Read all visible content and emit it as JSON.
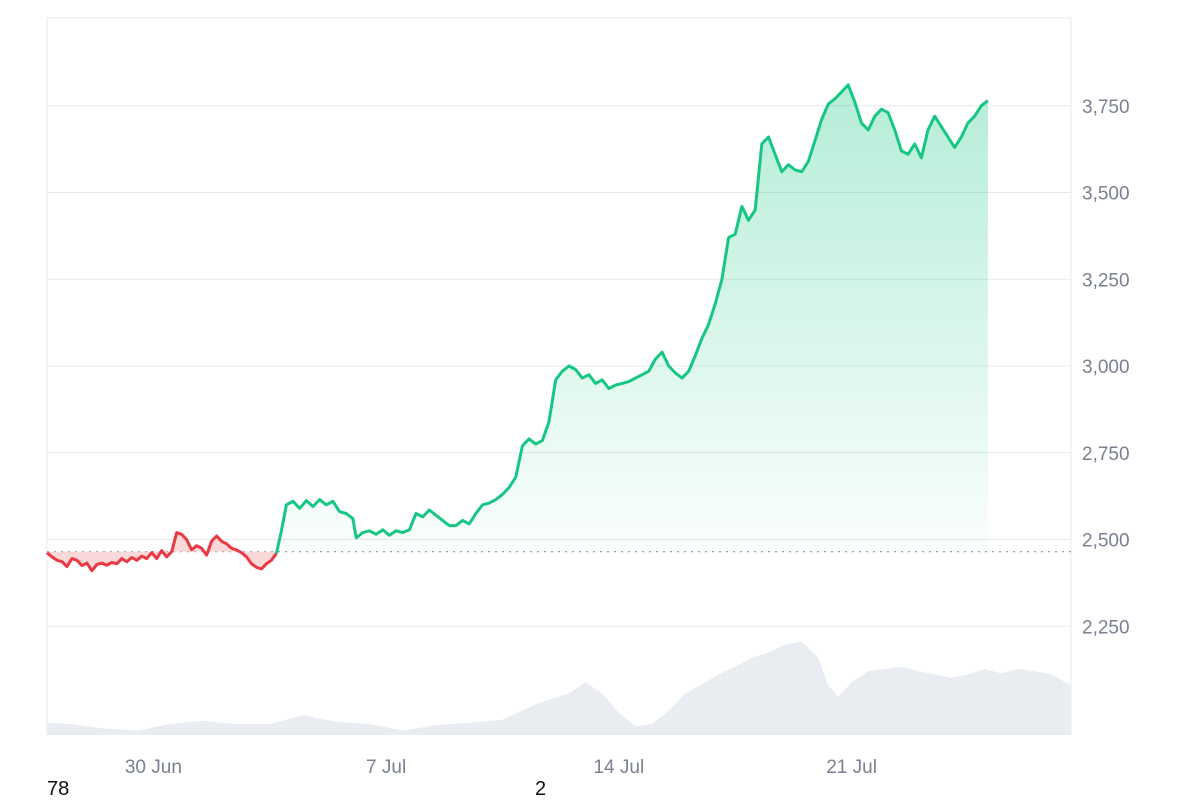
{
  "chart_data": {
    "type": "area",
    "title": "",
    "xlabel": "",
    "ylabel": "",
    "x_ticks": [
      {
        "day": 30,
        "label": "30 Jun"
      },
      {
        "day": 37,
        "label": "7 Jul"
      },
      {
        "day": 44,
        "label": "14 Jul"
      },
      {
        "day": 51,
        "label": "21 Jul"
      }
    ],
    "y_ticks": [
      {
        "value": 2250,
        "label": "2,250"
      },
      {
        "value": 2500,
        "label": "2,500"
      },
      {
        "value": 2750,
        "label": "2,750"
      },
      {
        "value": 3000,
        "label": "3,000"
      },
      {
        "value": 3250,
        "label": "3,250"
      },
      {
        "value": 3500,
        "label": "3,500"
      },
      {
        "value": 3750,
        "label": "3,750"
      }
    ],
    "ylim": [
      2000,
      4000
    ],
    "x_day_range": [
      26.8,
      57.6
    ],
    "baseline": 2465,
    "grid": true,
    "colors": {
      "up": "#16c784",
      "down": "#ea3943",
      "grid": "#e8e9ed",
      "volume": "#e9edf1",
      "axis_text": "#7a8090"
    },
    "series": [
      {
        "points": [
          [
            26.8,
            2462
          ],
          [
            26.95,
            2450
          ],
          [
            27.1,
            2440
          ],
          [
            27.25,
            2436
          ],
          [
            27.4,
            2422
          ],
          [
            27.55,
            2445
          ],
          [
            27.7,
            2440
          ],
          [
            27.85,
            2425
          ],
          [
            28.0,
            2432
          ],
          [
            28.15,
            2410
          ],
          [
            28.3,
            2428
          ],
          [
            28.45,
            2432
          ],
          [
            28.6,
            2426
          ],
          [
            28.75,
            2434
          ],
          [
            28.9,
            2430
          ],
          [
            29.05,
            2445
          ],
          [
            29.2,
            2436
          ],
          [
            29.35,
            2448
          ],
          [
            29.5,
            2440
          ],
          [
            29.65,
            2452
          ],
          [
            29.8,
            2445
          ],
          [
            29.95,
            2462
          ],
          [
            30.1,
            2445
          ],
          [
            30.25,
            2468
          ],
          [
            30.4,
            2450
          ],
          [
            30.55,
            2465
          ],
          [
            30.7,
            2520
          ],
          [
            30.85,
            2515
          ],
          [
            31.0,
            2500
          ],
          [
            31.15,
            2470
          ],
          [
            31.3,
            2482
          ],
          [
            31.45,
            2475
          ],
          [
            31.6,
            2455
          ],
          [
            31.75,
            2495
          ],
          [
            31.9,
            2510
          ],
          [
            32.05,
            2495
          ],
          [
            32.2,
            2488
          ],
          [
            32.35,
            2475
          ],
          [
            32.5,
            2470
          ],
          [
            32.65,
            2462
          ],
          [
            32.8,
            2450
          ],
          [
            32.95,
            2430
          ],
          [
            33.1,
            2420
          ],
          [
            33.25,
            2415
          ],
          [
            33.4,
            2430
          ],
          [
            33.55,
            2440
          ],
          [
            33.7,
            2460
          ],
          [
            33.85,
            2525
          ],
          [
            34.0,
            2600
          ],
          [
            34.2,
            2610
          ],
          [
            34.4,
            2590
          ],
          [
            34.6,
            2612
          ],
          [
            34.8,
            2595
          ],
          [
            35.0,
            2615
          ],
          [
            35.2,
            2600
          ],
          [
            35.4,
            2610
          ],
          [
            35.6,
            2580
          ],
          [
            35.8,
            2575
          ],
          [
            36.0,
            2560
          ],
          [
            36.1,
            2505
          ],
          [
            36.3,
            2520
          ],
          [
            36.5,
            2525
          ],
          [
            36.7,
            2515
          ],
          [
            36.9,
            2528
          ],
          [
            37.1,
            2512
          ],
          [
            37.3,
            2525
          ],
          [
            37.5,
            2520
          ],
          [
            37.7,
            2528
          ],
          [
            37.9,
            2575
          ],
          [
            38.1,
            2565
          ],
          [
            38.3,
            2585
          ],
          [
            38.5,
            2570
          ],
          [
            38.7,
            2555
          ],
          [
            38.9,
            2540
          ],
          [
            39.1,
            2540
          ],
          [
            39.3,
            2555
          ],
          [
            39.5,
            2545
          ],
          [
            39.7,
            2575
          ],
          [
            39.9,
            2600
          ],
          [
            40.1,
            2605
          ],
          [
            40.3,
            2615
          ],
          [
            40.5,
            2630
          ],
          [
            40.7,
            2650
          ],
          [
            40.9,
            2680
          ],
          [
            41.1,
            2770
          ],
          [
            41.3,
            2790
          ],
          [
            41.5,
            2775
          ],
          [
            41.7,
            2785
          ],
          [
            41.9,
            2840
          ],
          [
            42.1,
            2960
          ],
          [
            42.3,
            2985
          ],
          [
            42.5,
            3000
          ],
          [
            42.7,
            2990
          ],
          [
            42.9,
            2965
          ],
          [
            43.1,
            2975
          ],
          [
            43.3,
            2950
          ],
          [
            43.5,
            2960
          ],
          [
            43.7,
            2935
          ],
          [
            43.9,
            2945
          ],
          [
            44.1,
            2950
          ],
          [
            44.3,
            2955
          ],
          [
            44.5,
            2965
          ],
          [
            44.7,
            2975
          ],
          [
            44.9,
            2985
          ],
          [
            45.1,
            3020
          ],
          [
            45.3,
            3040
          ],
          [
            45.5,
            3000
          ],
          [
            45.7,
            2980
          ],
          [
            45.9,
            2965
          ],
          [
            46.1,
            2985
          ],
          [
            46.3,
            3030
          ],
          [
            46.5,
            3080
          ],
          [
            46.7,
            3120
          ],
          [
            46.9,
            3180
          ],
          [
            47.1,
            3250
          ],
          [
            47.3,
            3370
          ],
          [
            47.5,
            3380
          ],
          [
            47.7,
            3460
          ],
          [
            47.9,
            3420
          ],
          [
            48.1,
            3450
          ],
          [
            48.3,
            3640
          ],
          [
            48.5,
            3660
          ],
          [
            48.7,
            3610
          ],
          [
            48.9,
            3560
          ],
          [
            49.1,
            3580
          ],
          [
            49.3,
            3565
          ],
          [
            49.5,
            3560
          ],
          [
            49.7,
            3590
          ],
          [
            49.9,
            3650
          ],
          [
            50.1,
            3710
          ],
          [
            50.3,
            3755
          ],
          [
            50.5,
            3770
          ],
          [
            50.7,
            3790
          ],
          [
            50.9,
            3810
          ],
          [
            51.1,
            3760
          ],
          [
            51.3,
            3700
          ],
          [
            51.5,
            3680
          ],
          [
            51.7,
            3720
          ],
          [
            51.9,
            3740
          ],
          [
            52.1,
            3730
          ],
          [
            52.3,
            3680
          ],
          [
            52.5,
            3620
          ],
          [
            52.7,
            3610
          ],
          [
            52.9,
            3640
          ],
          [
            53.1,
            3600
          ],
          [
            53.3,
            3680
          ],
          [
            53.5,
            3720
          ],
          [
            53.7,
            3690
          ],
          [
            53.9,
            3660
          ],
          [
            54.1,
            3630
          ],
          [
            54.3,
            3660
          ],
          [
            54.5,
            3700
          ],
          [
            54.7,
            3720
          ],
          [
            54.9,
            3750
          ],
          [
            55.1,
            3765
          ]
        ]
      }
    ],
    "volume": {
      "points": [
        [
          26.8,
          0.11
        ],
        [
          27.5,
          0.1
        ],
        [
          28.5,
          0.06
        ],
        [
          29.5,
          0.04
        ],
        [
          30.5,
          0.1
        ],
        [
          31.5,
          0.13
        ],
        [
          32.5,
          0.1
        ],
        [
          33.5,
          0.1
        ],
        [
          34.5,
          0.18
        ],
        [
          35.5,
          0.12
        ],
        [
          36.5,
          0.1
        ],
        [
          37.5,
          0.04
        ],
        [
          38.5,
          0.09
        ],
        [
          39.5,
          0.11
        ],
        [
          40.5,
          0.14
        ],
        [
          41.5,
          0.28
        ],
        [
          42.5,
          0.38
        ],
        [
          43.0,
          0.48
        ],
        [
          43.5,
          0.38
        ],
        [
          44.0,
          0.2
        ],
        [
          44.5,
          0.08
        ],
        [
          45.0,
          0.1
        ],
        [
          45.5,
          0.22
        ],
        [
          46.0,
          0.38
        ],
        [
          46.5,
          0.46
        ],
        [
          47.0,
          0.55
        ],
        [
          47.5,
          0.62
        ],
        [
          48.0,
          0.7
        ],
        [
          48.5,
          0.75
        ],
        [
          49.0,
          0.82
        ],
        [
          49.5,
          0.85
        ],
        [
          50.0,
          0.7
        ],
        [
          50.3,
          0.45
        ],
        [
          50.6,
          0.35
        ],
        [
          51.0,
          0.48
        ],
        [
          51.5,
          0.58
        ],
        [
          52.0,
          0.6
        ],
        [
          52.5,
          0.62
        ],
        [
          53.0,
          0.58
        ],
        [
          53.5,
          0.55
        ],
        [
          54.0,
          0.52
        ],
        [
          54.5,
          0.55
        ],
        [
          55.0,
          0.6
        ],
        [
          55.5,
          0.56
        ],
        [
          56.0,
          0.6
        ],
        [
          56.5,
          0.58
        ],
        [
          57.0,
          0.55
        ],
        [
          57.6,
          0.45
        ]
      ]
    }
  },
  "stray_labels": {
    "left": "78",
    "middle": "2"
  }
}
